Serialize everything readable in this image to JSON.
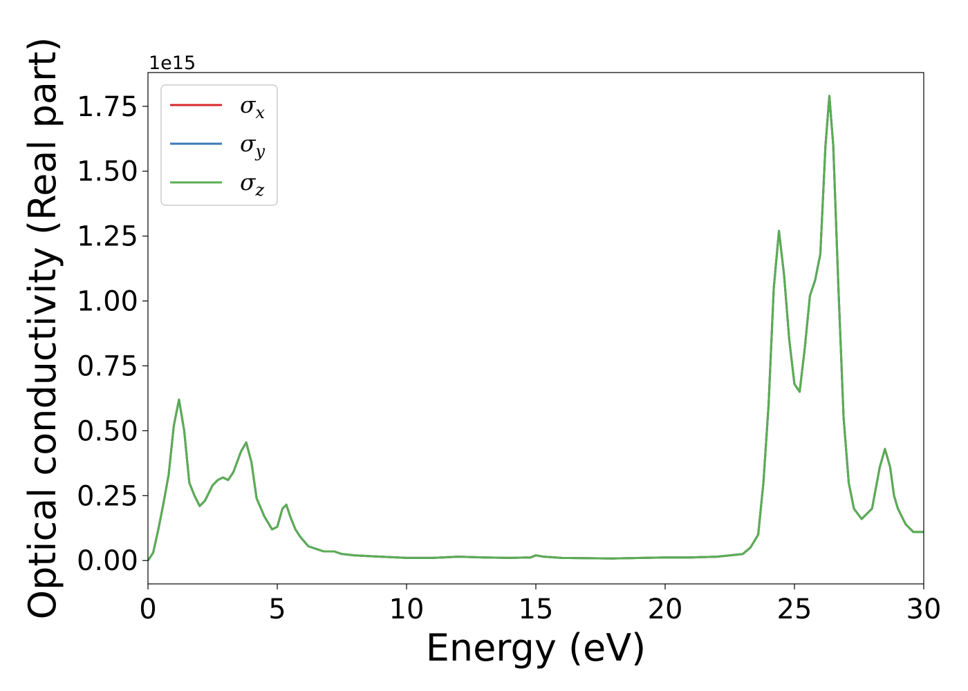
{
  "chart_data": {
    "type": "line",
    "title": "",
    "xlabel": "Energy (eV)",
    "ylabel": "Optical conductivity (Real part)",
    "y_offset_label": "1e15",
    "y_scale": 1000000000000000.0,
    "xlim": [
      0,
      30
    ],
    "ylim": [
      -0.09,
      1.88
    ],
    "xticks": [
      0,
      5,
      10,
      15,
      20,
      25,
      30
    ],
    "xtick_labels": [
      "0",
      "5",
      "10",
      "15",
      "20",
      "25",
      "30"
    ],
    "yticks": [
      0,
      0.25,
      0.5,
      0.75,
      1.0,
      1.25,
      1.5,
      1.75
    ],
    "ytick_labels": [
      "0.00",
      "0.25",
      "0.50",
      "0.75",
      "1.00",
      "1.25",
      "1.50",
      "1.75"
    ],
    "grid": false,
    "legend_position": "upper-left",
    "series": [
      {
        "name": "σ",
        "subscript": "x",
        "color": "#d62728"
      },
      {
        "name": "σ",
        "subscript": "y",
        "color": "#3b7ab5"
      },
      {
        "name": "σ",
        "subscript": "z",
        "color": "#5aad54"
      }
    ],
    "x": [
      0,
      0.2,
      0.4,
      0.6,
      0.8,
      1.0,
      1.2,
      1.4,
      1.6,
      1.8,
      2.0,
      2.2,
      2.5,
      2.7,
      2.9,
      3.1,
      3.3,
      3.6,
      3.8,
      4.0,
      4.2,
      4.5,
      4.8,
      5.0,
      5.2,
      5.35,
      5.5,
      5.7,
      5.9,
      6.2,
      6.5,
      6.8,
      7.2,
      7.5,
      8.0,
      9.0,
      10.0,
      11.0,
      12.0,
      13.0,
      14.0,
      14.8,
      15.0,
      15.3,
      16.0,
      18.0,
      20.0,
      21.0,
      22.0,
      22.5,
      23.0,
      23.3,
      23.6,
      23.8,
      24.0,
      24.2,
      24.4,
      24.6,
      24.8,
      25.0,
      25.2,
      25.4,
      25.6,
      25.8,
      26.0,
      26.2,
      26.35,
      26.5,
      26.7,
      26.9,
      27.1,
      27.3,
      27.6,
      28.0,
      28.3,
      28.5,
      28.7,
      28.85,
      29.0,
      29.3,
      29.6,
      30.0
    ],
    "values": [
      0.0,
      0.03,
      0.12,
      0.22,
      0.33,
      0.52,
      0.62,
      0.5,
      0.3,
      0.25,
      0.21,
      0.23,
      0.29,
      0.31,
      0.32,
      0.31,
      0.34,
      0.42,
      0.455,
      0.38,
      0.24,
      0.17,
      0.12,
      0.13,
      0.2,
      0.215,
      0.17,
      0.12,
      0.09,
      0.055,
      0.045,
      0.035,
      0.035,
      0.025,
      0.02,
      0.015,
      0.01,
      0.01,
      0.015,
      0.012,
      0.01,
      0.012,
      0.02,
      0.015,
      0.01,
      0.008,
      0.012,
      0.012,
      0.015,
      0.02,
      0.025,
      0.05,
      0.1,
      0.3,
      0.6,
      1.05,
      1.27,
      1.1,
      0.85,
      0.68,
      0.65,
      0.82,
      1.02,
      1.08,
      1.18,
      1.6,
      1.79,
      1.6,
      1.05,
      0.55,
      0.3,
      0.2,
      0.16,
      0.2,
      0.36,
      0.43,
      0.36,
      0.25,
      0.2,
      0.14,
      0.11,
      0.11
    ]
  }
}
